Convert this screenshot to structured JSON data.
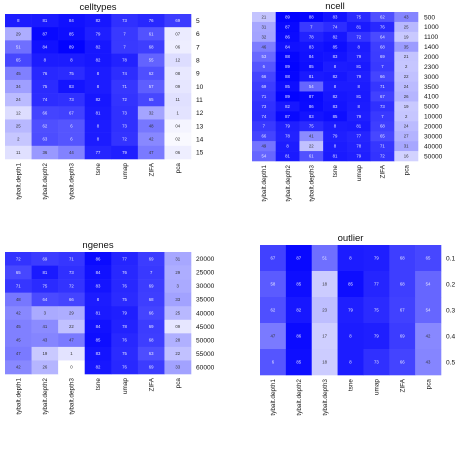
{
  "chart_data": [
    {
      "type": "heatmap",
      "title": "celltypes",
      "columns": [
        "tybalt.depth1",
        "tybalt.depth2",
        "tybalt.depth3",
        "tsne",
        "umap",
        "ZIFA",
        "pca"
      ],
      "rows": [
        "5",
        "6",
        "7",
        "8",
        "9",
        "10",
        "11",
        "12",
        "13",
        "14",
        "15"
      ],
      "values": [
        [
          0.8,
          0.81,
          0.84,
          0.82,
          0.73,
          0.76,
          0.69
        ],
        [
          0.29,
          0.87,
          0.85,
          0.79,
          0.7,
          0.61,
          0.07
        ],
        [
          0.51,
          0.84,
          0.89,
          0.82,
          0.7,
          0.68,
          0.06
        ],
        [
          0.65,
          0.8,
          0.8,
          0.82,
          0.78,
          0.55,
          0.12
        ],
        [
          0.45,
          0.76,
          0.75,
          0.8,
          0.74,
          0.62,
          0.08
        ],
        [
          0.34,
          0.75,
          0.83,
          0.8,
          0.71,
          0.57,
          0.09
        ],
        [
          0.24,
          0.74,
          0.73,
          0.82,
          0.72,
          0.65,
          0.11
        ],
        [
          0.12,
          0.66,
          0.67,
          0.81,
          0.73,
          0.32,
          0.1
        ],
        [
          0.25,
          0.62,
          0.6,
          0.8,
          0.73,
          0.48,
          0.04
        ],
        [
          0.2,
          0.63,
          0.6,
          0.8,
          0.72,
          0.42,
          0.02
        ],
        [
          0.11,
          0.36,
          0.44,
          0.77,
          0.79,
          0.47,
          0.06
        ]
      ],
      "color_low": "#ffffff",
      "color_high": "#0000ff",
      "range": [
        0,
        0.9
      ]
    },
    {
      "type": "heatmap",
      "title": "ncell",
      "columns": [
        "tybalt.depth1",
        "tybalt.depth2",
        "tybalt.depth3",
        "tsne",
        "umap",
        "ZIFA",
        "pca"
      ],
      "rows": [
        "500",
        "1000",
        "1100",
        "1400",
        "2000",
        "2300",
        "3000",
        "3500",
        "4100",
        "5000",
        "10000",
        "20000",
        "30000",
        "40000",
        "50000"
      ],
      "values": [
        [
          0.21,
          0.89,
          0.88,
          0.83,
          0.75,
          0.62,
          0.43
        ],
        [
          0.31,
          0.87,
          0.7,
          0.74,
          0.81,
          0.76,
          0.25
        ],
        [
          0.32,
          0.86,
          0.78,
          0.82,
          0.72,
          0.64,
          0.19
        ],
        [
          0.46,
          0.84,
          0.83,
          0.85,
          0.8,
          0.68,
          0.35
        ],
        [
          0.53,
          0.88,
          0.84,
          0.83,
          0.79,
          0.69,
          0.21
        ],
        [
          0.6,
          0.89,
          0.85,
          0.8,
          0.81,
          0.7,
          0.2
        ],
        [
          0.66,
          0.88,
          0.81,
          0.82,
          0.79,
          0.66,
          0.22
        ],
        [
          0.69,
          0.85,
          0.54,
          0.8,
          0.8,
          0.71,
          0.24
        ],
        [
          0.71,
          0.89,
          0.87,
          0.82,
          0.81,
          0.67,
          0.26
        ],
        [
          0.73,
          0.82,
          0.86,
          0.83,
          0.8,
          0.73,
          0.19
        ],
        [
          0.74,
          0.87,
          0.83,
          0.85,
          0.79,
          0.7,
          0.2
        ],
        [
          0.7,
          0.79,
          0.75,
          0.8,
          0.81,
          0.68,
          0.24
        ],
        [
          0.66,
          0.78,
          0.41,
          0.79,
          0.77,
          0.65,
          0.27
        ],
        [
          0.49,
          0.8,
          0.22,
          0.8,
          0.78,
          0.71,
          0.31
        ],
        [
          0.54,
          0.81,
          0.61,
          0.81,
          0.79,
          0.72,
          0.16
        ]
      ],
      "color_low": "#ffffff",
      "color_high": "#0000ff",
      "range": [
        0,
        0.9
      ]
    },
    {
      "type": "heatmap",
      "title": "ngenes",
      "columns": [
        "tybalt.depth1",
        "tybalt.depth2",
        "tybalt.depth3",
        "tsne",
        "umap",
        "ZIFA",
        "pca"
      ],
      "rows": [
        "20000",
        "25000",
        "30000",
        "35000",
        "40000",
        "45000",
        "50000",
        "55000",
        "60000"
      ],
      "values": [
        [
          0.72,
          0.69,
          0.71,
          0.86,
          0.77,
          0.69,
          0.31
        ],
        [
          0.65,
          0.81,
          0.73,
          0.84,
          0.76,
          0.7,
          0.29
        ],
        [
          0.71,
          0.75,
          0.72,
          0.83,
          0.76,
          0.69,
          0.3
        ],
        [
          0.48,
          0.64,
          0.66,
          0.8,
          0.75,
          0.68,
          0.33
        ],
        [
          0.42,
          0.3,
          0.29,
          0.81,
          0.79,
          0.66,
          0.25
        ],
        [
          0.45,
          0.41,
          0.22,
          0.84,
          0.78,
          0.69,
          0.09
        ],
        [
          0.45,
          0.43,
          0.47,
          0.85,
          0.76,
          0.68,
          0.28
        ],
        [
          0.47,
          0.19,
          0.1,
          0.83,
          0.75,
          0.63,
          0.22
        ],
        [
          0.42,
          0.26,
          0.0,
          0.82,
          0.76,
          0.69,
          0.33
        ]
      ],
      "color_low": "#ffffff",
      "color_high": "#0000ff",
      "range": [
        0,
        0.9
      ]
    },
    {
      "type": "heatmap",
      "title": "outlier",
      "columns": [
        "tybalt.depth1",
        "tybalt.depth2",
        "tybalt.depth3",
        "tsne",
        "umap",
        "ZIFA",
        "pca"
      ],
      "rows": [
        "0.1",
        "0.2",
        "0.3",
        "0.4",
        "0.5"
      ],
      "values": [
        [
          0.67,
          0.87,
          0.51,
          0.8,
          0.79,
          0.68,
          0.65
        ],
        [
          0.58,
          0.85,
          0.18,
          0.85,
          0.77,
          0.68,
          0.54
        ],
        [
          0.62,
          0.82,
          0.23,
          0.79,
          0.75,
          0.67,
          0.54
        ],
        [
          0.47,
          0.86,
          0.17,
          0.8,
          0.79,
          0.69,
          0.42
        ],
        [
          0.6,
          0.85,
          0.18,
          0.8,
          0.73,
          0.66,
          0.43
        ]
      ],
      "color_low": "#ffffff",
      "color_high": "#0000ff",
      "range": [
        0,
        0.9
      ]
    }
  ]
}
